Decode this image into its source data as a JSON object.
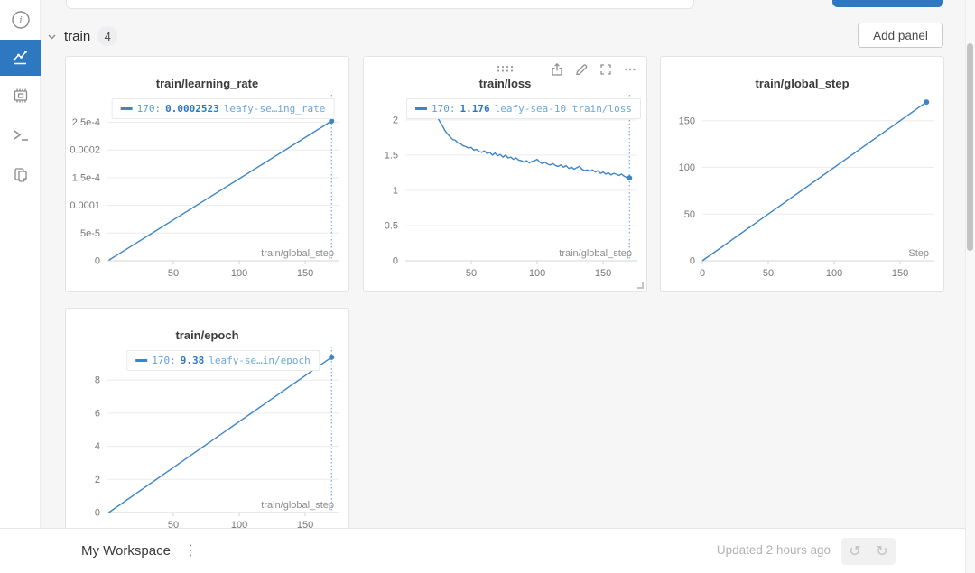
{
  "colors": {
    "accent": "#2e78c2",
    "chart_line": "#3d85c6",
    "crosshair": "#5b9bd8",
    "grid": "#ececec",
    "axis": "#d4d4d4"
  },
  "sidebar": {
    "items": [
      {
        "name": "info"
      },
      {
        "name": "charts",
        "selected": true
      },
      {
        "name": "system"
      },
      {
        "name": "logs"
      },
      {
        "name": "files"
      }
    ]
  },
  "header": {
    "section": "train",
    "count": "4",
    "add_panel_label": "Add panel"
  },
  "panel_toolbar": {
    "icons": [
      "drag-handle",
      "export",
      "edit",
      "fullscreen",
      "more"
    ]
  },
  "chart_data": [
    {
      "type": "line",
      "title": "train/learning_rate",
      "xlabel": "train/global_step",
      "xlim": [
        0,
        176
      ],
      "ylim": [
        0,
        0.00029
      ],
      "xticks": [
        {
          "v": 50,
          "label": "50"
        },
        {
          "v": 100,
          "label": "100"
        },
        {
          "v": 150,
          "label": "150"
        }
      ],
      "yticks": [
        {
          "v": 0,
          "label": "0"
        },
        {
          "v": 5e-05,
          "label": "5e-5"
        },
        {
          "v": 0.0001,
          "label": "0.0001"
        },
        {
          "v": 0.00015,
          "label": "1.5e-4"
        },
        {
          "v": 0.0002,
          "label": "0.0002"
        },
        {
          "v": 0.00025,
          "label": "2.5e-4"
        }
      ],
      "series": [
        {
          "name": "leafy-sea-10",
          "x": [
            1,
            170
          ],
          "y": [
            1e-06,
            0.0002523
          ]
        }
      ],
      "legend": {
        "step": "170:",
        "value": "0.0002523",
        "run": "leafy-se…ing_rate"
      },
      "crosshair_x": 170,
      "end_dot": {
        "x": 170,
        "y": 0.0002523
      }
    },
    {
      "type": "line",
      "title": "train/loss",
      "xlabel": "train/global_step",
      "xlim": [
        0,
        176
      ],
      "ylim": [
        0,
        2.28
      ],
      "xticks": [
        {
          "v": 50,
          "label": "50"
        },
        {
          "v": 100,
          "label": "100"
        },
        {
          "v": 150,
          "label": "150"
        }
      ],
      "yticks": [
        {
          "v": 0,
          "label": "0"
        },
        {
          "v": 0.5,
          "label": "0.5"
        },
        {
          "v": 1,
          "label": "1"
        },
        {
          "v": 1.5,
          "label": "1.5"
        },
        {
          "v": 2,
          "label": "2"
        }
      ],
      "series": [
        {
          "name": "leafy-sea-10",
          "x": [
            2,
            4,
            6,
            8,
            10,
            12,
            14,
            16,
            18,
            20,
            22,
            24,
            26,
            28,
            30,
            32,
            34,
            36,
            38,
            40,
            42,
            44,
            46,
            48,
            50,
            52,
            54,
            56,
            58,
            60,
            62,
            64,
            66,
            68,
            70,
            72,
            74,
            76,
            78,
            80,
            82,
            84,
            86,
            88,
            90,
            92,
            94,
            96,
            98,
            100,
            102,
            104,
            106,
            108,
            110,
            112,
            114,
            116,
            118,
            120,
            122,
            124,
            126,
            128,
            130,
            132,
            134,
            136,
            138,
            140,
            142,
            144,
            146,
            148,
            150,
            152,
            154,
            156,
            158,
            160,
            162,
            164,
            166,
            168,
            170
          ],
          "y": [
            2.2,
            2.24,
            2.19,
            2.22,
            2.21,
            2.16,
            2.2,
            2.13,
            2.15,
            2.09,
            2.11,
            2.05,
            1.98,
            1.92,
            1.85,
            1.8,
            1.76,
            1.72,
            1.71,
            1.67,
            1.66,
            1.63,
            1.62,
            1.6,
            1.61,
            1.57,
            1.58,
            1.55,
            1.54,
            1.56,
            1.52,
            1.54,
            1.5,
            1.53,
            1.49,
            1.51,
            1.47,
            1.5,
            1.46,
            1.47,
            1.44,
            1.46,
            1.43,
            1.42,
            1.4,
            1.42,
            1.39,
            1.41,
            1.42,
            1.44,
            1.4,
            1.38,
            1.4,
            1.37,
            1.36,
            1.38,
            1.35,
            1.34,
            1.36,
            1.33,
            1.35,
            1.31,
            1.33,
            1.3,
            1.32,
            1.34,
            1.3,
            1.28,
            1.29,
            1.27,
            1.29,
            1.26,
            1.28,
            1.24,
            1.26,
            1.23,
            1.25,
            1.22,
            1.24,
            1.23,
            1.21,
            1.23,
            1.2,
            1.18,
            1.176
          ]
        }
      ],
      "legend": {
        "step": "170:",
        "value": "1.176",
        "run": "leafy-sea-10 train/loss"
      },
      "crosshair_x": 170,
      "end_dot": {
        "x": 170,
        "y": 1.176
      }
    },
    {
      "type": "line",
      "title": "train/global_step",
      "xlabel": "Step",
      "xlim": [
        0,
        176
      ],
      "ylim": [
        0,
        172
      ],
      "xticks": [
        {
          "v": 0,
          "label": "0"
        },
        {
          "v": 50,
          "label": "50"
        },
        {
          "v": 100,
          "label": "100"
        },
        {
          "v": 150,
          "label": "150"
        }
      ],
      "yticks": [
        {
          "v": 0,
          "label": "0"
        },
        {
          "v": 50,
          "label": "50"
        },
        {
          "v": 100,
          "label": "100"
        },
        {
          "v": 150,
          "label": "150"
        }
      ],
      "series": [
        {
          "name": "leafy-sea-10",
          "x": [
            0,
            170
          ],
          "y": [
            0,
            170
          ]
        }
      ],
      "legend": null,
      "crosshair_x": null,
      "end_dot": {
        "x": 170,
        "y": 170
      }
    },
    {
      "type": "line",
      "title": "train/epoch",
      "xlabel": "train/global_step",
      "xlim": [
        0,
        176
      ],
      "ylim": [
        0,
        9.7
      ],
      "xticks": [
        {
          "v": 50,
          "label": "50"
        },
        {
          "v": 100,
          "label": "100"
        },
        {
          "v": 150,
          "label": "150"
        }
      ],
      "yticks": [
        {
          "v": 0,
          "label": "0"
        },
        {
          "v": 2,
          "label": "2"
        },
        {
          "v": 4,
          "label": "4"
        },
        {
          "v": 6,
          "label": "6"
        },
        {
          "v": 8,
          "label": "8"
        }
      ],
      "series": [
        {
          "name": "leafy-sea-10",
          "x": [
            1,
            170
          ],
          "y": [
            0,
            9.38
          ]
        }
      ],
      "legend": {
        "step": "170:",
        "value": "9.38",
        "run": "leafy-se…in/epoch"
      },
      "crosshair_x": 170,
      "end_dot": {
        "x": 170,
        "y": 9.38
      }
    }
  ],
  "footer": {
    "workspace": "My Workspace",
    "updated": "Updated 2 hours ago",
    "kebab_icon": "⋮",
    "undo_icon": "↺",
    "redo_icon": "↻"
  }
}
